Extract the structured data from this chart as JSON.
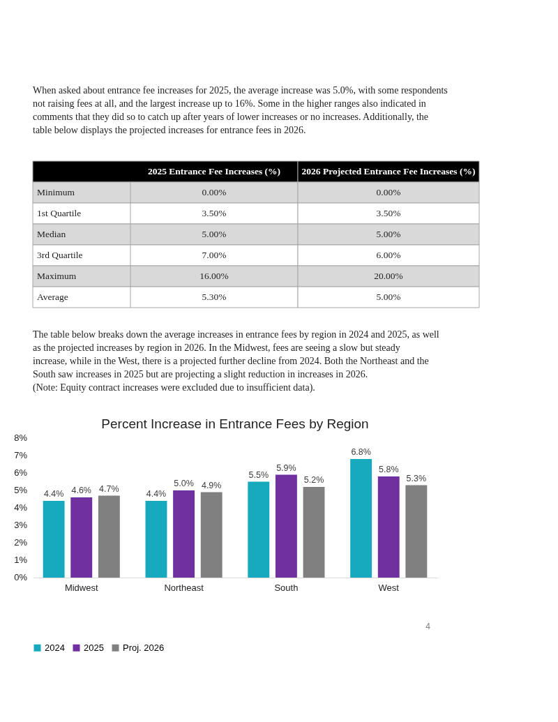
{
  "chart_data": [
    {
      "type": "other",
      "annotations": [
        "When asked about entrance fee increases for 2025, the average increase was 5.0%, with some respondents not raising fees at all, and the largest increase up to 16%. Some in the higher ranges also indicated in comments that they did so to catch up after years of lower increases or no increases. Additionally, the table below displays the projected increases for entrance fees in 2026."
      ]
    },
    {
      "type": "other",
      "categories": [
        "2025 Entrance Fee Increases (%)",
        "2026 Projected Entrance Fee Increases (%)"
      ],
      "y_categories": [
        "Minimum",
        "1st Quartile",
        "Median",
        "3rd Quartile",
        "Maximum",
        "Average"
      ],
      "cell_labels": [
        [
          "0.00%",
          "0.00%"
        ],
        [
          "3.50%",
          "3.50%"
        ],
        [
          "5.00%",
          "5.00%"
        ],
        [
          "7.00%",
          "6.00%"
        ],
        [
          "16.00%",
          "20.00%"
        ],
        [
          "5.30%",
          "5.00%"
        ]
      ]
    },
    {
      "type": "other",
      "annotations": [
        "The table below breaks down the average increases in entrance fees by region in 2024 and 2025, as well as the projected increases by region in 2026. In the Midwest, fees are seeing a slow but steady increase, while in the West, there is a projected further decline from 2024. Both the Northeast and the South saw increases in 2025 but are projecting a slight reduction in increases in 2026.",
        "(Note: Equity contract increases were excluded due to insufficient data)."
      ]
    },
    {
      "type": "bar",
      "title": "Percent Increase in Entrance Fees by Region",
      "categories": [
        "Midwest",
        "Northeast",
        "South",
        "West"
      ],
      "series": [
        {
          "name": "2024",
          "color": "#17a9be",
          "values": [
            4.4,
            4.4,
            5.5,
            6.8
          ],
          "value_labels": [
            "4.4%",
            "4.4%",
            "5.5%",
            "6.8%"
          ]
        },
        {
          "name": "2025",
          "color": "#7030a0",
          "values": [
            4.6,
            5.0,
            5.9,
            5.8
          ],
          "value_labels": [
            "4.6%",
            "5.0%",
            "5.9%",
            "5.8%"
          ]
        },
        {
          "name": "Proj. 2026",
          "color": "#808080",
          "values": [
            4.7,
            4.9,
            5.2,
            5.3
          ],
          "value_labels": [
            "4.7%",
            "4.9%",
            "5.2%",
            "5.3%"
          ]
        }
      ],
      "ylim": [
        0,
        8
      ],
      "yticks": [
        {
          "value": 0,
          "label": "0%"
        },
        {
          "value": 1,
          "label": "1%"
        },
        {
          "value": 2,
          "label": "2%"
        },
        {
          "value": 3,
          "label": "3%"
        },
        {
          "value": 4,
          "label": "4%"
        },
        {
          "value": 5,
          "label": "5%"
        },
        {
          "value": 6,
          "label": "6%"
        },
        {
          "value": 7,
          "label": "7%"
        },
        {
          "value": 8,
          "label": "8%"
        }
      ],
      "grid": false,
      "legend": "bottom",
      "annotations": [
        "4"
      ]
    }
  ]
}
